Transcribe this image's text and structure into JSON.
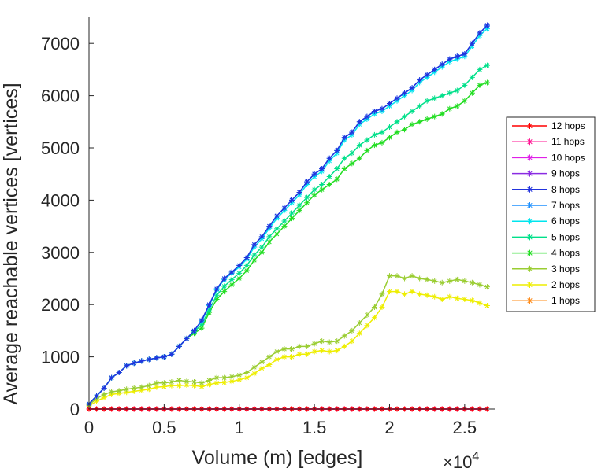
{
  "chart_data": {
    "type": "line",
    "title": "",
    "xlabel": "Volume (m) [edges]",
    "ylabel": "Average reachable vertices [vertices]",
    "x_exponent_base": "×10",
    "x_exponent_power": "4",
    "xlim": [
      0,
      27000
    ],
    "ylim": [
      0,
      7500
    ],
    "x_ticks": [
      {
        "value": 0,
        "label": "0"
      },
      {
        "value": 5000,
        "label": "0.5"
      },
      {
        "value": 10000,
        "label": "1"
      },
      {
        "value": 15000,
        "label": "1.5"
      },
      {
        "value": 20000,
        "label": "2"
      },
      {
        "value": 25000,
        "label": "2.5"
      }
    ],
    "y_ticks": [
      {
        "value": 0,
        "label": "0"
      },
      {
        "value": 1000,
        "label": "1000"
      },
      {
        "value": 2000,
        "label": "2000"
      },
      {
        "value": 3000,
        "label": "3000"
      },
      {
        "value": 4000,
        "label": "4000"
      },
      {
        "value": 5000,
        "label": "5000"
      },
      {
        "value": 6000,
        "label": "6000"
      },
      {
        "value": 7000,
        "label": "7000"
      }
    ],
    "grid": false,
    "legend_position": "right",
    "marker": "asterisk",
    "x": [
      0,
      500,
      1000,
      1500,
      2000,
      2500,
      3000,
      3500,
      4000,
      4500,
      5000,
      5500,
      6000,
      6500,
      7000,
      7500,
      8000,
      8500,
      9000,
      9500,
      10000,
      10500,
      11000,
      11500,
      12000,
      12500,
      13000,
      13500,
      14000,
      14500,
      15000,
      15500,
      16000,
      16500,
      17000,
      17500,
      18000,
      18500,
      19000,
      19500,
      20000,
      20500,
      21000,
      21500,
      22000,
      22500,
      23000,
      23500,
      24000,
      24500,
      25000,
      25500,
      26000,
      26500
    ],
    "series": [
      {
        "name": "12 hops",
        "color": "#ff0000",
        "values": [
          0,
          0,
          0,
          0,
          0,
          0,
          0,
          0,
          0,
          0,
          0,
          0,
          0,
          0,
          0,
          0,
          0,
          0,
          0,
          0,
          0,
          0,
          0,
          0,
          0,
          0,
          0,
          0,
          0,
          0,
          0,
          0,
          0,
          0,
          0,
          0,
          0,
          0,
          0,
          0,
          0,
          0,
          0,
          0,
          0,
          0,
          0,
          0,
          0,
          0,
          0,
          0,
          0,
          0
        ]
      },
      {
        "name": "11 hops",
        "color": "#ff1493",
        "values": [
          0,
          0,
          0,
          0,
          0,
          0,
          0,
          0,
          0,
          0,
          0,
          0,
          0,
          0,
          0,
          0,
          0,
          0,
          0,
          0,
          0,
          0,
          0,
          0,
          0,
          0,
          0,
          0,
          0,
          0,
          0,
          0,
          0,
          0,
          0,
          0,
          0,
          0,
          0,
          0,
          0,
          0,
          0,
          0,
          0,
          0,
          0,
          0,
          0,
          0,
          0,
          0,
          0,
          0
        ]
      },
      {
        "name": "10 hops",
        "color": "#e020e8",
        "values": [
          0,
          0,
          0,
          0,
          0,
          0,
          0,
          0,
          0,
          0,
          0,
          0,
          0,
          0,
          0,
          0,
          0,
          0,
          0,
          0,
          0,
          0,
          0,
          0,
          0,
          0,
          0,
          0,
          0,
          0,
          0,
          0,
          0,
          0,
          0,
          0,
          0,
          0,
          0,
          0,
          0,
          0,
          0,
          0,
          0,
          0,
          0,
          0,
          0,
          0,
          0,
          0,
          0,
          0
        ]
      },
      {
        "name": "9 hops",
        "color": "#8a2be2",
        "values": [
          0,
          0,
          0,
          0,
          0,
          0,
          0,
          0,
          0,
          0,
          0,
          0,
          0,
          0,
          0,
          0,
          0,
          0,
          0,
          0,
          0,
          0,
          0,
          0,
          0,
          0,
          0,
          0,
          0,
          0,
          0,
          0,
          0,
          0,
          0,
          0,
          0,
          0,
          0,
          0,
          0,
          0,
          0,
          0,
          0,
          0,
          0,
          0,
          0,
          0,
          0,
          0,
          0,
          0
        ]
      },
      {
        "name": "8 hops",
        "color": "#2233dd",
        "values": [
          100,
          250,
          400,
          600,
          700,
          830,
          880,
          920,
          950,
          980,
          1000,
          1050,
          1200,
          1350,
          1500,
          1700,
          2000,
          2300,
          2500,
          2620,
          2750,
          2900,
          3150,
          3300,
          3500,
          3700,
          3850,
          4000,
          4150,
          4350,
          4500,
          4600,
          4800,
          4950,
          5200,
          5300,
          5500,
          5600,
          5700,
          5750,
          5850,
          5950,
          6050,
          6150,
          6300,
          6400,
          6500,
          6600,
          6700,
          6750,
          6800,
          7000,
          7200,
          7350
        ]
      },
      {
        "name": "7 hops",
        "color": "#1e90ff",
        "values": [
          100,
          250,
          400,
          600,
          700,
          830,
          880,
          920,
          950,
          980,
          1000,
          1050,
          1200,
          1350,
          1500,
          1700,
          2000,
          2300,
          2500,
          2620,
          2750,
          2900,
          3150,
          3300,
          3500,
          3700,
          3850,
          4000,
          4150,
          4350,
          4500,
          4600,
          4800,
          4950,
          5200,
          5300,
          5500,
          5600,
          5700,
          5750,
          5850,
          5950,
          6050,
          6150,
          6300,
          6400,
          6500,
          6600,
          6700,
          6750,
          6800,
          7000,
          7200,
          7330
        ]
      },
      {
        "name": "6 hops",
        "color": "#00e5ee",
        "values": [
          100,
          250,
          400,
          600,
          700,
          830,
          880,
          920,
          950,
          980,
          1000,
          1050,
          1200,
          1350,
          1500,
          1680,
          1980,
          2280,
          2480,
          2600,
          2720,
          2870,
          3100,
          3260,
          3460,
          3650,
          3800,
          3950,
          4100,
          4300,
          4450,
          4550,
          4750,
          4900,
          5150,
          5250,
          5450,
          5550,
          5650,
          5700,
          5800,
          5900,
          6000,
          6100,
          6250,
          6350,
          6450,
          6550,
          6650,
          6700,
          6750,
          6950,
          7150,
          7280
        ]
      },
      {
        "name": "5 hops",
        "color": "#00e08a",
        "values": [
          100,
          250,
          400,
          600,
          700,
          830,
          880,
          920,
          950,
          980,
          1000,
          1050,
          1200,
          1350,
          1480,
          1620,
          1900,
          2180,
          2350,
          2480,
          2600,
          2750,
          2950,
          3100,
          3300,
          3450,
          3600,
          3750,
          3900,
          4050,
          4200,
          4300,
          4450,
          4600,
          4800,
          4900,
          5050,
          5150,
          5250,
          5300,
          5400,
          5500,
          5600,
          5700,
          5800,
          5900,
          5950,
          6000,
          6050,
          6100,
          6200,
          6350,
          6500,
          6580
        ]
      },
      {
        "name": "4 hops",
        "color": "#22dd22",
        "values": [
          100,
          250,
          400,
          600,
          700,
          830,
          880,
          920,
          950,
          980,
          1000,
          1050,
          1200,
          1350,
          1450,
          1550,
          1850,
          2100,
          2250,
          2380,
          2500,
          2650,
          2850,
          3000,
          3200,
          3350,
          3500,
          3650,
          3800,
          3950,
          4100,
          4200,
          4300,
          4400,
          4600,
          4700,
          4800,
          4950,
          5050,
          5100,
          5200,
          5300,
          5350,
          5450,
          5500,
          5550,
          5600,
          5650,
          5750,
          5800,
          5900,
          6050,
          6200,
          6250
        ]
      },
      {
        "name": "3 hops",
        "color": "#9acd32",
        "values": [
          80,
          200,
          280,
          330,
          350,
          380,
          400,
          420,
          450,
          500,
          500,
          520,
          550,
          530,
          520,
          500,
          550,
          600,
          600,
          620,
          650,
          700,
          800,
          900,
          1000,
          1100,
          1150,
          1150,
          1200,
          1200,
          1250,
          1300,
          1280,
          1300,
          1400,
          1500,
          1650,
          1800,
          1950,
          2200,
          2550,
          2550,
          2500,
          2550,
          2500,
          2480,
          2450,
          2420,
          2450,
          2480,
          2450,
          2420,
          2380,
          2340
        ]
      },
      {
        "name": "2 hops",
        "color": "#eeee00",
        "values": [
          60,
          150,
          220,
          280,
          300,
          320,
          340,
          360,
          380,
          420,
          430,
          450,
          450,
          460,
          450,
          430,
          470,
          500,
          510,
          530,
          560,
          600,
          680,
          780,
          850,
          950,
          1000,
          1000,
          1050,
          1050,
          1100,
          1120,
          1100,
          1120,
          1200,
          1300,
          1450,
          1600,
          1750,
          1950,
          2250,
          2250,
          2200,
          2250,
          2200,
          2180,
          2150,
          2100,
          2150,
          2120,
          2100,
          2080,
          2030,
          1980
        ]
      },
      {
        "name": "1 hops",
        "color": "#ff8c1a",
        "values": [
          0,
          0,
          0,
          0,
          0,
          0,
          0,
          0,
          0,
          0,
          0,
          0,
          0,
          0,
          0,
          0,
          0,
          0,
          0,
          0,
          0,
          0,
          0,
          0,
          0,
          0,
          0,
          0,
          0,
          0,
          0,
          0,
          0,
          0,
          0,
          0,
          0,
          0,
          0,
          0,
          0,
          0,
          0,
          0,
          0,
          0,
          0,
          0,
          0,
          0,
          0,
          0,
          0,
          0
        ]
      }
    ]
  }
}
